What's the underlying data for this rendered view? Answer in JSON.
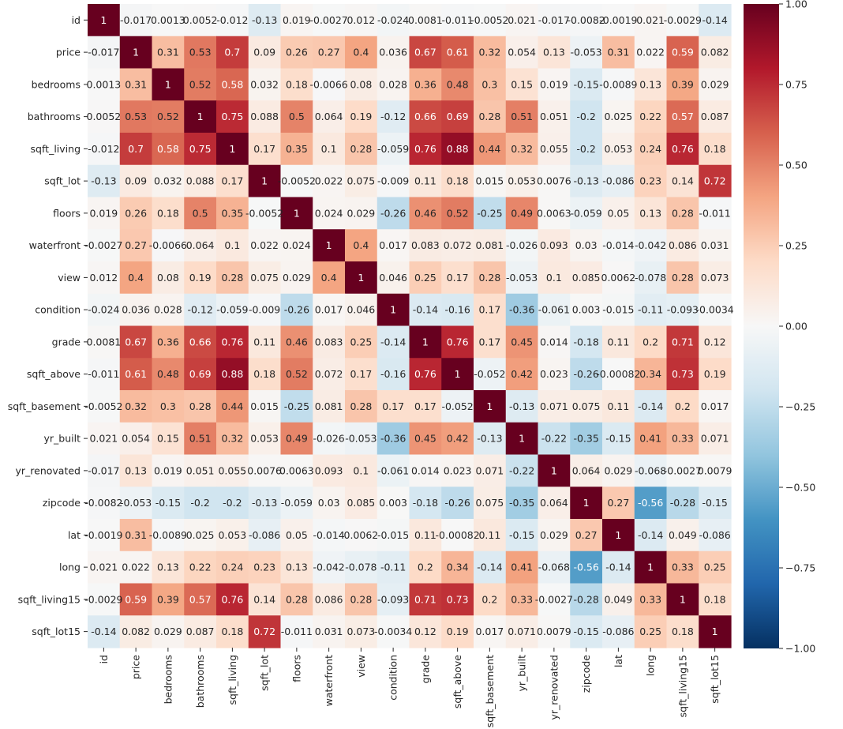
{
  "chart_data": {
    "type": "heatmap",
    "variables": [
      "id",
      "price",
      "bedrooms",
      "bathrooms",
      "sqft_living",
      "sqft_lot",
      "floors",
      "waterfront",
      "view",
      "condition",
      "grade",
      "sqft_above",
      "sqft_basement",
      "yr_built",
      "yr_renovated",
      "zipcode",
      "lat",
      "long",
      "sqft_living15",
      "sqft_lot15"
    ],
    "values": [
      [
        1,
        -0.017,
        0.0013,
        0.0052,
        -0.012,
        -0.13,
        0.019,
        -0.0027,
        0.012,
        -0.024,
        0.0081,
        -0.011,
        -0.0052,
        0.021,
        -0.017,
        -0.0082,
        -0.0019,
        0.021,
        -0.0029,
        -0.14
      ],
      [
        -0.017,
        1,
        0.31,
        0.53,
        0.7,
        0.09,
        0.26,
        0.27,
        0.4,
        0.036,
        0.67,
        0.61,
        0.32,
        0.054,
        0.13,
        -0.053,
        0.31,
        0.022,
        0.59,
        0.082
      ],
      [
        0.0013,
        0.31,
        1,
        0.52,
        0.58,
        0.032,
        0.18,
        -0.0066,
        0.08,
        0.028,
        0.36,
        0.48,
        0.3,
        0.15,
        0.019,
        -0.15,
        -0.0089,
        0.13,
        0.39,
        0.029
      ],
      [
        0.0052,
        0.53,
        0.52,
        1,
        0.75,
        0.088,
        0.5,
        0.064,
        0.19,
        -0.12,
        0.66,
        0.69,
        0.28,
        0.51,
        0.051,
        -0.2,
        0.025,
        0.22,
        0.57,
        0.087
      ],
      [
        -0.012,
        0.7,
        0.58,
        0.75,
        1,
        0.17,
        0.35,
        0.1,
        0.28,
        -0.059,
        0.76,
        0.88,
        0.44,
        0.32,
        0.055,
        -0.2,
        0.053,
        0.24,
        0.76,
        0.18
      ],
      [
        -0.13,
        0.09,
        0.032,
        0.088,
        0.17,
        1,
        -0.0052,
        0.022,
        0.075,
        -0.009,
        0.11,
        0.18,
        0.015,
        0.053,
        0.0076,
        -0.13,
        -0.086,
        0.23,
        0.14,
        0.72
      ],
      [
        0.019,
        0.26,
        0.18,
        0.5,
        0.35,
        -0.0052,
        1,
        0.024,
        0.029,
        -0.26,
        0.46,
        0.52,
        -0.25,
        0.49,
        0.0063,
        -0.059,
        0.05,
        0.13,
        0.28,
        -0.011
      ],
      [
        -0.0027,
        0.27,
        -0.0066,
        0.064,
        0.1,
        0.022,
        0.024,
        1,
        0.4,
        0.017,
        0.083,
        0.072,
        0.081,
        -0.026,
        0.093,
        0.03,
        -0.014,
        -0.042,
        0.086,
        0.031
      ],
      [
        0.012,
        0.4,
        0.08,
        0.19,
        0.28,
        0.075,
        0.029,
        0.4,
        1,
        0.046,
        0.25,
        0.17,
        0.28,
        -0.053,
        0.1,
        0.085,
        0.0062,
        -0.078,
        0.28,
        0.073
      ],
      [
        -0.024,
        0.036,
        0.028,
        -0.12,
        -0.059,
        -0.009,
        -0.26,
        0.017,
        0.046,
        1,
        -0.14,
        -0.16,
        0.17,
        -0.36,
        -0.061,
        0.003,
        -0.015,
        -0.11,
        -0.093,
        -0.0034
      ],
      [
        0.0081,
        0.67,
        0.36,
        0.66,
        0.76,
        0.11,
        0.46,
        0.083,
        0.25,
        -0.14,
        1,
        0.76,
        0.17,
        0.45,
        0.014,
        -0.18,
        0.11,
        0.2,
        0.71,
        0.12
      ],
      [
        -0.011,
        0.61,
        0.48,
        0.69,
        0.88,
        0.18,
        0.52,
        0.072,
        0.17,
        -0.16,
        0.76,
        1,
        -0.052,
        0.42,
        0.023,
        -0.26,
        -0.00082,
        0.34,
        0.73,
        0.19
      ],
      [
        -0.0052,
        0.32,
        0.3,
        0.28,
        0.44,
        0.015,
        -0.25,
        0.081,
        0.28,
        0.17,
        0.17,
        -0.052,
        1,
        -0.13,
        0.071,
        0.075,
        0.11,
        -0.14,
        0.2,
        0.017
      ],
      [
        0.021,
        0.054,
        0.15,
        0.51,
        0.32,
        0.053,
        0.49,
        -0.026,
        -0.053,
        -0.36,
        0.45,
        0.42,
        -0.13,
        1,
        -0.22,
        -0.35,
        -0.15,
        0.41,
        0.33,
        0.071
      ],
      [
        -0.017,
        0.13,
        0.019,
        0.051,
        0.055,
        0.0076,
        0.0063,
        0.093,
        0.1,
        -0.061,
        0.014,
        0.023,
        0.071,
        -0.22,
        1,
        0.064,
        0.029,
        -0.068,
        -0.0027,
        0.0079
      ],
      [
        -0.0082,
        -0.053,
        -0.15,
        -0.2,
        -0.2,
        -0.13,
        -0.059,
        0.03,
        0.085,
        0.003,
        -0.18,
        -0.26,
        0.075,
        -0.35,
        0.064,
        1,
        0.27,
        -0.56,
        -0.28,
        -0.15
      ],
      [
        -0.0019,
        0.31,
        -0.0089,
        0.025,
        0.053,
        -0.086,
        0.05,
        -0.014,
        0.0062,
        -0.015,
        0.11,
        -0.00082,
        0.11,
        -0.15,
        0.029,
        0.27,
        1,
        -0.14,
        0.049,
        -0.086
      ],
      [
        0.021,
        0.022,
        0.13,
        0.22,
        0.24,
        0.23,
        0.13,
        -0.042,
        -0.078,
        -0.11,
        0.2,
        0.34,
        -0.14,
        0.41,
        -0.068,
        -0.56,
        -0.14,
        1,
        0.33,
        0.25
      ],
      [
        -0.0029,
        0.59,
        0.39,
        0.57,
        0.76,
        0.14,
        0.28,
        0.086,
        0.28,
        -0.093,
        0.71,
        0.73,
        0.2,
        0.33,
        -0.0027,
        -0.28,
        0.049,
        0.33,
        1,
        0.18
      ],
      [
        -0.14,
        0.082,
        0.029,
        0.087,
        0.18,
        0.72,
        -0.011,
        0.031,
        0.073,
        -0.0034,
        0.12,
        0.19,
        0.017,
        0.071,
        0.0079,
        -0.15,
        -0.086,
        0.25,
        0.18,
        1
      ]
    ],
    "colormap": "RdBu_r",
    "vmin": -1,
    "vmax": 1,
    "colorbar_ticks": [
      1.0,
      0.75,
      0.5,
      0.25,
      0.0,
      -0.25,
      -0.5,
      -0.75,
      -1.0
    ],
    "colorbar_tick_labels": [
      "1.00",
      "0.75",
      "0.50",
      "0.25",
      "0.00",
      "−0.25",
      "−0.50",
      "−0.75",
      "−1.00"
    ],
    "title": "",
    "xlabel": "",
    "ylabel": "",
    "annotated": true
  }
}
